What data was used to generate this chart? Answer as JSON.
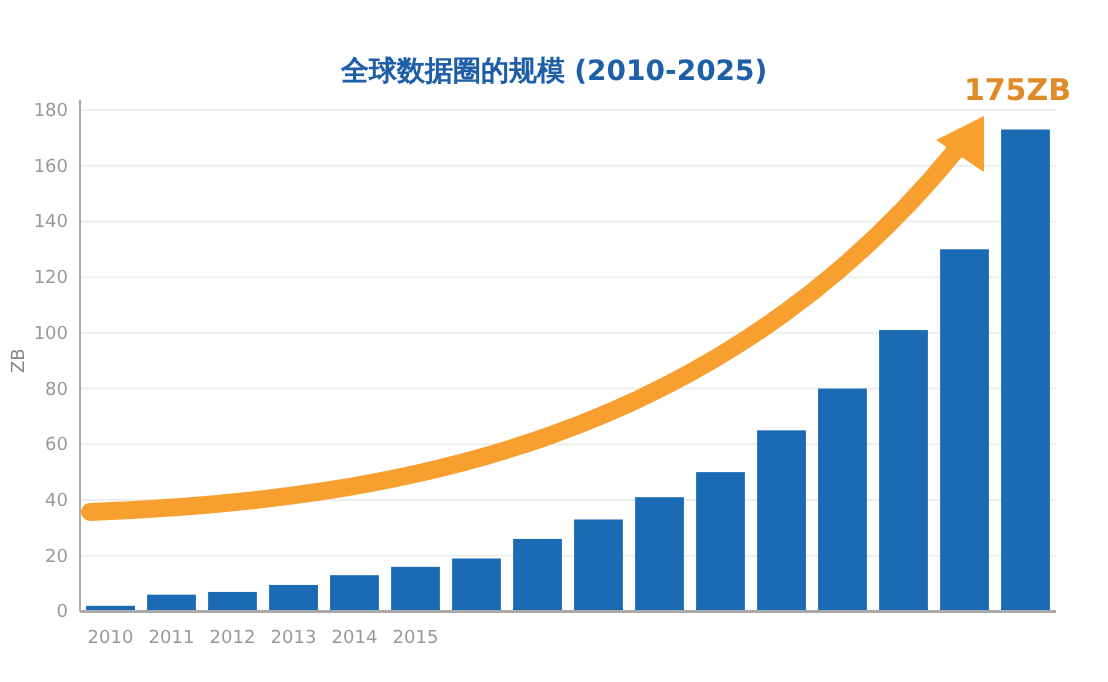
{
  "chart_data": {
    "type": "bar",
    "title": "全球数据圈的规模 (2010-2025)",
    "ylabel": "ZB",
    "categories": [
      "2010",
      "2011",
      "2012",
      "2013",
      "2014",
      "2015",
      null,
      null,
      null,
      null,
      null,
      null,
      null,
      null,
      null,
      null
    ],
    "values": [
      2,
      6,
      7,
      9.5,
      13,
      16,
      19,
      26,
      33,
      41,
      50,
      65,
      80,
      101,
      130,
      173
    ],
    "color": "#1a6ab4",
    "ylim": [
      0,
      180
    ],
    "yticks": [
      0,
      20,
      40,
      60,
      80,
      100,
      120,
      140,
      160,
      180
    ],
    "grid": "y",
    "annotations": [
      "175ZB"
    ]
  }
}
